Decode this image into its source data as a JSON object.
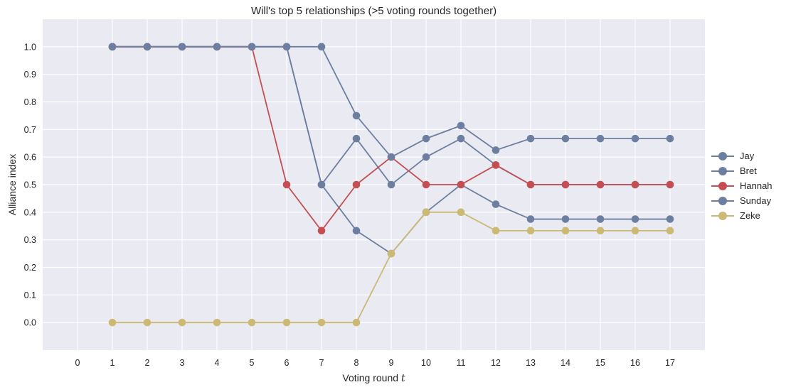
{
  "chart_data": {
    "type": "line",
    "title": "Will's top 5 relationships (>5 voting rounds together)",
    "xlabel": "Voting round",
    "xlabel_var": "t",
    "ylabel": "Alliance index",
    "xlim": [
      -1,
      18
    ],
    "ylim": [
      -0.1,
      1.1
    ],
    "x_ticks": [
      0,
      1,
      2,
      3,
      4,
      5,
      6,
      7,
      8,
      9,
      10,
      11,
      12,
      13,
      14,
      15,
      16,
      17
    ],
    "y_ticks": [
      0.0,
      0.1,
      0.2,
      0.3,
      0.4,
      0.5,
      0.6,
      0.7,
      0.8,
      0.9,
      1.0
    ],
    "y_tick_labels": [
      "0.0",
      "0.1",
      "0.2",
      "0.3",
      "0.4",
      "0.5",
      "0.6",
      "0.7",
      "0.8",
      "0.9",
      "1.0"
    ],
    "grid": true,
    "legend_position": "right-outside",
    "x": [
      1,
      2,
      3,
      4,
      5,
      6,
      7,
      8,
      9,
      10,
      11,
      12,
      13,
      14,
      15,
      16,
      17
    ],
    "series": [
      {
        "name": "Jay",
        "color": "#6d7fa0",
        "values": [
          1.0,
          1.0,
          1.0,
          1.0,
          1.0,
          1.0,
          0.5,
          0.333,
          0.25,
          0.4,
          0.5,
          0.429,
          0.375,
          0.375,
          0.375,
          0.375,
          0.375
        ]
      },
      {
        "name": "Bret",
        "color": "#6d7fa0",
        "values": [
          1.0,
          1.0,
          1.0,
          1.0,
          1.0,
          1.0,
          0.5,
          0.667,
          0.5,
          0.6,
          0.667,
          0.571,
          0.5,
          0.5,
          0.5,
          0.5,
          0.5
        ]
      },
      {
        "name": "Hannah",
        "color": "#c44e52",
        "values": [
          1.0,
          1.0,
          1.0,
          1.0,
          1.0,
          0.5,
          0.333,
          0.5,
          0.6,
          0.5,
          0.5,
          0.571,
          0.5,
          0.5,
          0.5,
          0.5,
          0.5
        ]
      },
      {
        "name": "Sunday",
        "color": "#6d7fa0",
        "values": [
          1.0,
          1.0,
          1.0,
          1.0,
          1.0,
          1.0,
          1.0,
          0.75,
          0.6,
          0.667,
          0.714,
          0.625,
          0.667,
          0.667,
          0.667,
          0.667,
          0.667
        ]
      },
      {
        "name": "Zeke",
        "color": "#ccb974",
        "values": [
          0.0,
          0.0,
          0.0,
          0.0,
          0.0,
          0.0,
          0.0,
          0.0,
          0.25,
          0.4,
          0.4,
          0.333,
          0.333,
          0.333,
          0.333,
          0.333,
          0.333
        ]
      }
    ]
  }
}
